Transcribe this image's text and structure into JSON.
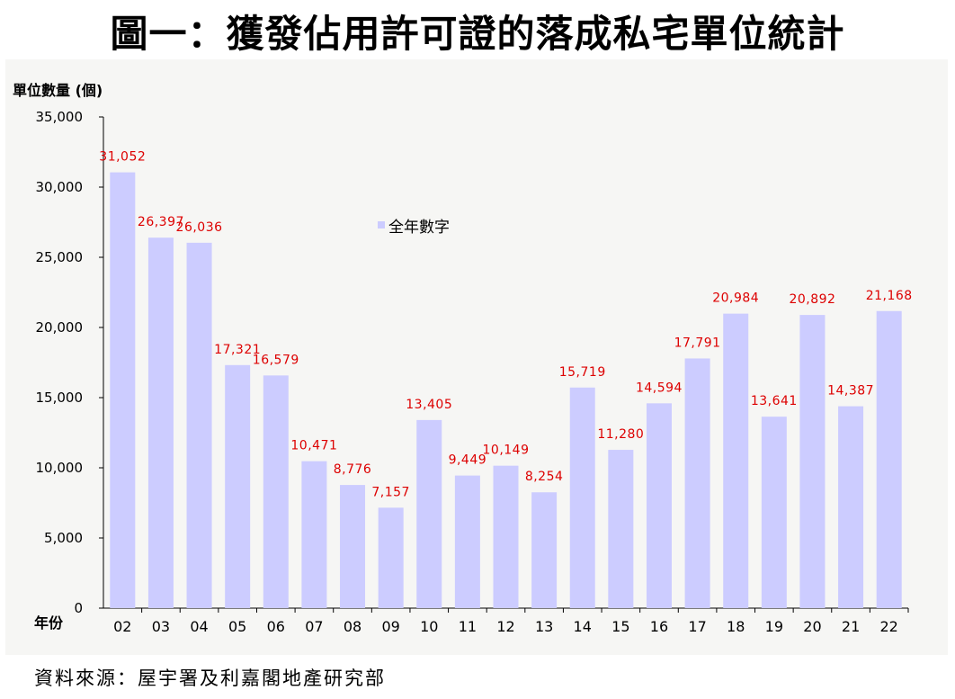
{
  "title": "圖一：獲發佔用許可證的落成私宅單位統計",
  "source": "資料來源：屋宇署及利嘉閣地產研究部",
  "colors": {
    "bar": "#ccccff",
    "label": "#dd0000",
    "axis": "#000000",
    "panel": "#f6f6f4"
  },
  "chart_data": {
    "type": "bar",
    "title": "圖一：獲發佔用許可證的落成私宅單位統計",
    "ylabel": "單位數量 (個)",
    "xlabel": "年份",
    "ylim": [
      0,
      35000
    ],
    "yticks": [
      0,
      5000,
      10000,
      15000,
      20000,
      25000,
      30000,
      35000
    ],
    "ytick_labels": [
      "0",
      "5,000",
      "10,000",
      "15,000",
      "20,000",
      "25,000",
      "30,000",
      "35,000"
    ],
    "legend": "全年數字",
    "legend_position": "top-center",
    "grid": false,
    "categories": [
      "02",
      "03",
      "04",
      "05",
      "06",
      "07",
      "08",
      "09",
      "10",
      "11",
      "12",
      "13",
      "14",
      "15",
      "16",
      "17",
      "18",
      "19",
      "20",
      "21",
      "22"
    ],
    "values": [
      31052,
      26397,
      26036,
      17321,
      16579,
      10471,
      8776,
      7157,
      13405,
      9449,
      10149,
      8254,
      15719,
      11280,
      14594,
      17791,
      20984,
      13641,
      20892,
      14387,
      21168
    ],
    "value_labels": [
      "31,052",
      "26,397",
      "26,036",
      "17,321",
      "16,579",
      "10,471",
      "8,776",
      "7,157",
      "13,405",
      "9,449",
      "10,149",
      "8,254",
      "15,719",
      "11,280",
      "14,594",
      "17,791",
      "20,984",
      "13,641",
      "20,892",
      "14,387",
      "21,168"
    ]
  }
}
